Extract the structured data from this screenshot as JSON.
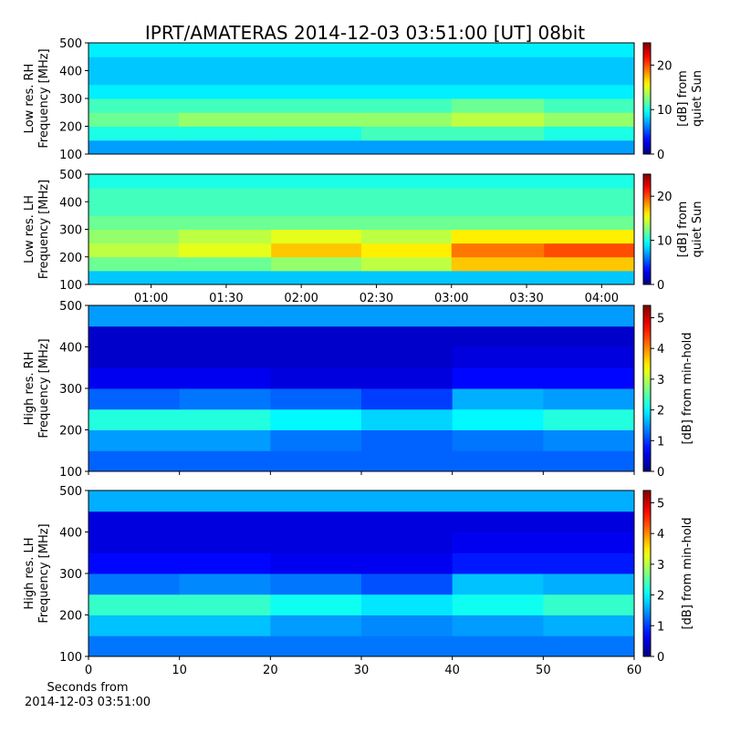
{
  "chart_data": [
    {
      "type": "heatmap",
      "title": "IPRT/AMATERAS 2014-12-03 03:51:00 [UT]   08bit",
      "ylabel": [
        "Low res. RH",
        "Frequency [MHz]"
      ],
      "x": [
        "00:35",
        "01:11",
        "01:48",
        "02:24",
        "03:00",
        "03:37",
        "04:13"
      ],
      "xlim": [
        "00:35",
        "04:13"
      ],
      "ylim": [
        100,
        500
      ],
      "yticks": [
        100,
        200,
        300,
        400,
        500
      ],
      "y": [
        100,
        150,
        200,
        250,
        300,
        350,
        400,
        450,
        500
      ],
      "clim": [
        0,
        25
      ],
      "cticks": [
        0,
        10,
        20
      ],
      "clabel": [
        "[dB] from",
        "quiet Sun"
      ],
      "colormap": "jet",
      "values": [
        [
          7,
          7,
          7,
          7,
          7,
          7
        ],
        [
          10,
          10,
          10,
          11,
          11,
          10
        ],
        [
          12,
          13,
          13,
          13,
          14,
          13
        ],
        [
          11,
          11,
          11,
          11,
          12,
          11
        ],
        [
          9,
          9,
          9,
          9,
          9,
          9
        ],
        [
          8,
          8,
          8,
          8,
          8,
          8
        ],
        [
          8,
          8,
          8,
          8,
          8,
          8
        ],
        [
          9,
          9,
          9,
          9,
          9,
          9
        ]
      ]
    },
    {
      "type": "heatmap",
      "ylabel": [
        "Low res. LH",
        "Frequency [MHz]"
      ],
      "x": [
        "00:35",
        "01:11",
        "01:48",
        "02:24",
        "03:00",
        "03:37",
        "04:13"
      ],
      "xlim": [
        "00:35",
        "04:13"
      ],
      "xticks": [
        "01:00",
        "01:30",
        "02:00",
        "02:30",
        "03:00",
        "03:30",
        "04:00"
      ],
      "ylim": [
        100,
        500
      ],
      "yticks": [
        100,
        200,
        300,
        400,
        500
      ],
      "y": [
        100,
        150,
        200,
        250,
        300,
        350,
        400,
        450,
        500
      ],
      "clim": [
        0,
        25
      ],
      "cticks": [
        0,
        10,
        20
      ],
      "clabel": [
        "[dB] from",
        "quiet Sun"
      ],
      "colormap": "jet",
      "values": [
        [
          8,
          8,
          8,
          8,
          8,
          8
        ],
        [
          12,
          12,
          13,
          14,
          17,
          17
        ],
        [
          14,
          15,
          17,
          16,
          19,
          20
        ],
        [
          13,
          14,
          15,
          14,
          16,
          16
        ],
        [
          12,
          12,
          12,
          12,
          12,
          12
        ],
        [
          11,
          11,
          11,
          11,
          11,
          11
        ],
        [
          11,
          11,
          11,
          11,
          11,
          11
        ],
        [
          10,
          10,
          10,
          10,
          10,
          10
        ]
      ]
    },
    {
      "type": "heatmap",
      "ylabel": [
        "High res. RH",
        "Frequency [MHz]"
      ],
      "x": [
        0,
        10,
        20,
        30,
        40,
        50,
        60
      ],
      "xlim": [
        0,
        60
      ],
      "xticks": [
        0,
        10,
        20,
        30,
        40,
        50,
        60
      ],
      "xticklabels": false,
      "ylim": [
        100,
        500
      ],
      "yticks": [
        100,
        200,
        300,
        400,
        500
      ],
      "y": [
        100,
        150,
        200,
        250,
        300,
        350,
        400,
        450,
        500
      ],
      "clim": [
        0,
        5.4
      ],
      "cticks": [
        0,
        1,
        2,
        3,
        4,
        5
      ],
      "clabel": [
        "[dB] from min-hold"
      ],
      "colormap": "jet",
      "values": [
        [
          1.2,
          1.2,
          1.2,
          1.2,
          1.2,
          1.2
        ],
        [
          1.5,
          1.5,
          1.3,
          1.2,
          1.3,
          1.4
        ],
        [
          2.2,
          2.2,
          2.0,
          1.8,
          2.0,
          2.2
        ],
        [
          1.2,
          1.3,
          1.2,
          1.0,
          1.6,
          1.5
        ],
        [
          0.6,
          0.6,
          0.5,
          0.5,
          0.7,
          0.7
        ],
        [
          0.4,
          0.4,
          0.4,
          0.4,
          0.5,
          0.5
        ],
        [
          0.4,
          0.4,
          0.4,
          0.4,
          0.4,
          0.4
        ],
        [
          1.5,
          1.5,
          1.5,
          1.5,
          1.5,
          1.5
        ]
      ]
    },
    {
      "type": "heatmap",
      "ylabel": [
        "High res. LH",
        "Frequency [MHz]"
      ],
      "x": [
        0,
        10,
        20,
        30,
        40,
        50,
        60
      ],
      "xlim": [
        0,
        60
      ],
      "xticks": [
        0,
        10,
        20,
        30,
        40,
        50,
        60
      ],
      "xlabel": [
        "Seconds from",
        "2014-12-03 03:51:00"
      ],
      "ylim": [
        100,
        500
      ],
      "yticks": [
        100,
        200,
        300,
        400,
        500
      ],
      "y": [
        100,
        150,
        200,
        250,
        300,
        350,
        400,
        450,
        500
      ],
      "clim": [
        0,
        5.4
      ],
      "cticks": [
        0,
        1,
        2,
        3,
        4,
        5
      ],
      "clabel": [
        "[dB] from min-hold"
      ],
      "colormap": "jet",
      "values": [
        [
          1.3,
          1.3,
          1.3,
          1.3,
          1.3,
          1.3
        ],
        [
          1.7,
          1.7,
          1.5,
          1.4,
          1.5,
          1.6
        ],
        [
          2.3,
          2.3,
          2.1,
          1.9,
          2.1,
          2.3
        ],
        [
          1.3,
          1.4,
          1.3,
          1.1,
          1.7,
          1.6
        ],
        [
          0.7,
          0.7,
          0.6,
          0.6,
          0.8,
          0.8
        ],
        [
          0.5,
          0.5,
          0.5,
          0.5,
          0.6,
          0.6
        ],
        [
          0.5,
          0.5,
          0.5,
          0.5,
          0.5,
          0.5
        ],
        [
          1.6,
          1.6,
          1.6,
          1.6,
          1.6,
          1.6
        ]
      ]
    }
  ]
}
